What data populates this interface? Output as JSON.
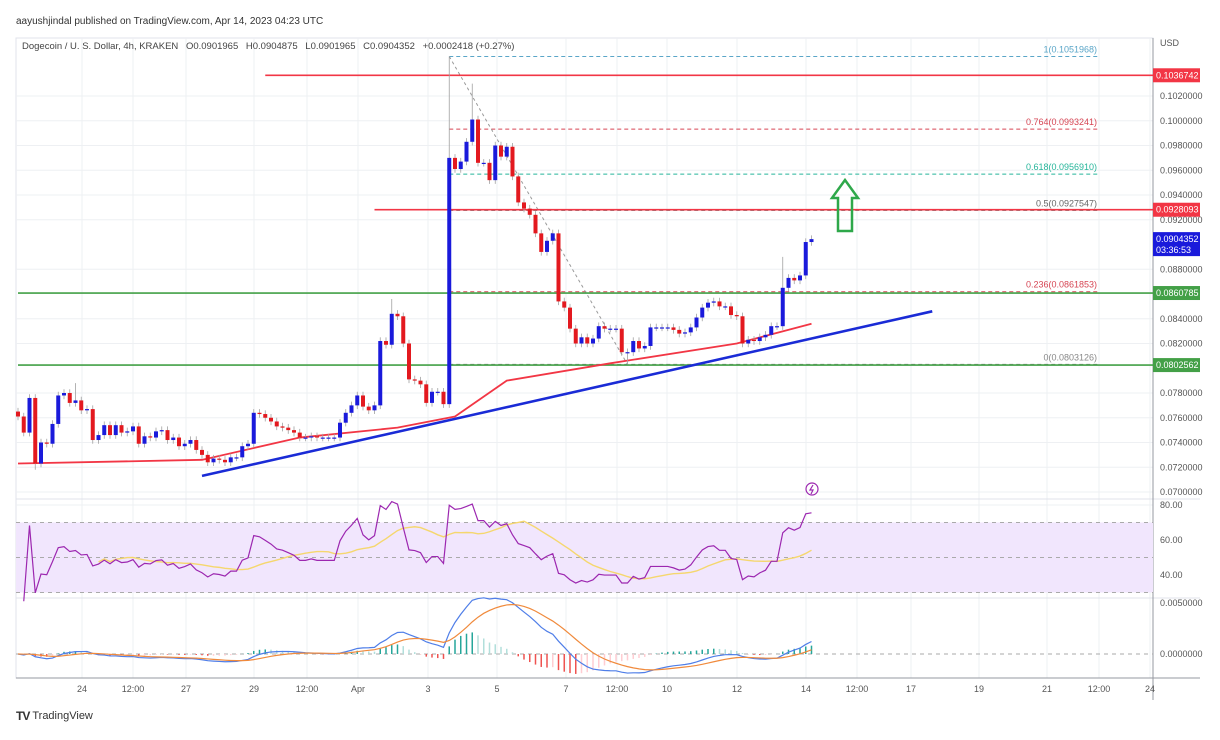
{
  "publisher": "aayushjindal published on TradingView.com, Apr 14, 2023 04:23 UTC",
  "legend": {
    "symbol": "Dogecoin / U. S. Dollar, 4h, KRAKEN",
    "open": "O0.0901965",
    "high": "H0.0904875",
    "low": "L0.0901965",
    "close": "C0.0904352",
    "change": "+0.0002418 (+0.27%)"
  },
  "price_axis": {
    "currency": "USD",
    "ticks": [
      "0.1020000",
      "0.1000000",
      "0.0980000",
      "0.0960000",
      "0.0940000",
      "0.0920000",
      "0.0880000",
      "0.0840000",
      "0.0820000",
      "0.0780000",
      "0.0760000",
      "0.0740000",
      "0.0720000",
      "0.0700000"
    ],
    "labels": [
      {
        "text": "0.1036742",
        "price": 0.1036742,
        "color": "#f23645"
      },
      {
        "text": "0.0928093",
        "price": 0.0928093,
        "color": "#f23645"
      },
      {
        "text": "0.0860785",
        "price": 0.0860785,
        "color": "#43a047"
      },
      {
        "text": "0.0802562",
        "price": 0.0802562,
        "color": "#43a047"
      }
    ],
    "current": {
      "price_text": "0.0904352",
      "countdown": "03:36:53",
      "price": 0.0904352,
      "color": "#1a1adb"
    }
  },
  "time_axis": [
    "24",
    "12:00",
    "27",
    "29",
    "12:00",
    "Apr",
    "3",
    "5",
    "7",
    "12:00",
    "10",
    "12",
    "14",
    "12:00",
    "17",
    "19",
    "21",
    "12:00",
    "24"
  ],
  "chart_data": {
    "type": "candlestick",
    "interval": "4h",
    "start": "2023-03-22 04:00",
    "first_open": 0.0765,
    "close": [
      0.0761,
      0.0748,
      0.0776,
      0.0723,
      0.074,
      0.0739,
      0.0755,
      0.0778,
      0.078,
      0.0772,
      0.0774,
      0.0766,
      0.0767,
      0.0742,
      0.0746,
      0.0754,
      0.0746,
      0.0754,
      0.0748,
      0.0749,
      0.0753,
      0.0739,
      0.0745,
      0.0744,
      0.0749,
      0.075,
      0.0742,
      0.0744,
      0.0737,
      0.0739,
      0.0742,
      0.0734,
      0.073,
      0.0724,
      0.0727,
      0.0726,
      0.0724,
      0.0728,
      0.0728,
      0.0737,
      0.0739,
      0.0764,
      0.0763,
      0.076,
      0.0757,
      0.0753,
      0.0752,
      0.075,
      0.0748,
      0.0744,
      0.0744,
      0.0745,
      0.0744,
      0.0744,
      0.0744,
      0.0744,
      0.0756,
      0.0764,
      0.077,
      0.0778,
      0.0769,
      0.0766,
      0.077,
      0.0822,
      0.0819,
      0.0844,
      0.0842,
      0.082,
      0.0791,
      0.079,
      0.0787,
      0.0772,
      0.0781,
      0.0781,
      0.0771,
      0.097,
      0.0961,
      0.0967,
      0.0983,
      0.1001,
      0.0966,
      0.0966,
      0.0952,
      0.098,
      0.0971,
      0.0979,
      0.0955,
      0.0934,
      0.0929,
      0.0924,
      0.0909,
      0.0894,
      0.0903,
      0.0909,
      0.0854,
      0.0849,
      0.0832,
      0.082,
      0.0825,
      0.082,
      0.0824,
      0.0834,
      0.0832,
      0.0832,
      0.0832,
      0.0813,
      0.0813,
      0.0822,
      0.0816,
      0.0818,
      0.0833,
      0.0833,
      0.0833,
      0.0833,
      0.0831,
      0.0828,
      0.0829,
      0.0833,
      0.0841,
      0.0849,
      0.0853,
      0.0854,
      0.085,
      0.085,
      0.0843,
      0.0842,
      0.082,
      0.0823,
      0.0822,
      0.0825,
      0.0827,
      0.0834,
      0.0834,
      0.0865,
      0.0873,
      0.0871,
      0.0875,
      0.0902,
      0.0904352
    ],
    "wick_extremes": [
      {
        "candle": 4,
        "low": 0.0718
      },
      {
        "candle": 11,
        "high": 0.0788
      },
      {
        "candle": 66,
        "high": 0.0856
      },
      {
        "candle": 76,
        "high": 0.1051968
      },
      {
        "candle": 80,
        "high": 0.103
      },
      {
        "candle": 107,
        "low": 0.0803126
      },
      {
        "candle": 134,
        "high": 0.089
      }
    ],
    "ylim": [
      0.0688,
      0.1066
    ],
    "colors": {
      "up": "#1a1adb",
      "down": "#e3191f"
    },
    "moving_average": {
      "color": "#f23645",
      "points": [
        {
          "time": "2023-03-22 04:00",
          "price": 0.0723
        },
        {
          "time": "2023-03-27 12:00",
          "price": 0.0726
        },
        {
          "time": "2023-03-30 08:00",
          "price": 0.0744
        },
        {
          "time": "2023-04-02 04:00",
          "price": 0.0752
        },
        {
          "time": "2023-04-03 20:00",
          "price": 0.0761
        },
        {
          "time": "2023-04-05 08:00",
          "price": 0.079
        },
        {
          "time": "2023-04-08 08:00",
          "price": 0.0804
        },
        {
          "time": "2023-04-12 00:00",
          "price": 0.082
        },
        {
          "time": "2023-04-14 04:00",
          "price": 0.0836
        }
      ]
    },
    "trendline": {
      "color": "#1a2bd6",
      "from": {
        "time": "2023-03-27 12:00",
        "price": 0.0713
      },
      "to": {
        "time": "2023-04-17 16:00",
        "price": 0.0846
      }
    },
    "horizontal_lines": [
      {
        "price": 0.1036742,
        "color": "#f23645",
        "from": "2023-03-29 08:00"
      },
      {
        "price": 0.0928093,
        "color": "#f23645",
        "from": "2023-04-01 12:00"
      },
      {
        "price": 0.0860785,
        "color": "#43a047",
        "from": "2023-03-22 04:00"
      },
      {
        "price": 0.0802562,
        "color": "#43a047",
        "from": "2023-03-22 04:00"
      }
    ],
    "fibonacci": {
      "from": {
        "time": "2023-04-03 16:00",
        "price": 0.1051968
      },
      "to": {
        "time": "2023-04-08 20:00",
        "price": 0.0803126
      },
      "levels": [
        {
          "label": "1(0.1051968)",
          "price": 0.1051968,
          "color": "#5aa6c8"
        },
        {
          "label": "0.764(0.0993241)",
          "price": 0.0993241,
          "color": "#d64553"
        },
        {
          "label": "0.618(0.0956910)",
          "price": 0.095691,
          "color": "#26b59a"
        },
        {
          "label": "0.5(0.0927547)",
          "price": 0.0927547,
          "color": "#666666"
        },
        {
          "label": "0.236(0.0861853)",
          "price": 0.0861853,
          "color": "#d64553"
        },
        {
          "label": "0(0.0803126)",
          "price": 0.0803126,
          "color": "#888888"
        }
      ]
    },
    "annotation_arrow": {
      "direction": "up",
      "color": "#2ea84a"
    }
  },
  "rsi": {
    "ticks": [
      "80.00",
      "60.00",
      "40.00"
    ],
    "band": [
      30,
      70
    ],
    "line_color": "#9c27b0",
    "ma_color": "#f5d76e",
    "band_color": "#f1e6fd"
  },
  "macd": {
    "ticks": [
      "0.0050000",
      "0.0000000"
    ],
    "macd_color": "#4f7ee8",
    "signal_color": "#f08a3c"
  },
  "footer": {
    "brand": "TradingView",
    "logo": "TV"
  }
}
